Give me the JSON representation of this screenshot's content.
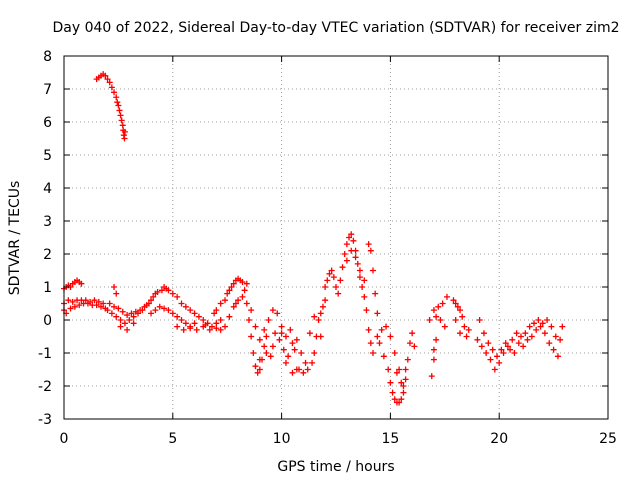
{
  "chart_data": {
    "type": "scatter",
    "title": "Day 040 of 2022, Sidereal Day-to-day VTEC variation (SDTVAR) for receiver zim2",
    "xlabel": "GPS time / hours",
    "ylabel": "SDTVAR / TECUs",
    "xlim": [
      0,
      25
    ],
    "ylim": [
      -3,
      8
    ],
    "xticks": [
      0,
      5,
      10,
      15,
      20,
      25
    ],
    "yticks": [
      -3,
      -2,
      -1,
      0,
      1,
      2,
      3,
      4,
      5,
      6,
      7,
      8
    ],
    "xtick_labels": [
      "0",
      "5",
      "10",
      "15",
      "20",
      "25"
    ],
    "ytick_labels": [
      "-3",
      "-2",
      "-1",
      "0",
      "1",
      "2",
      "3",
      "4",
      "5",
      "6",
      "7",
      "8"
    ],
    "grid": true,
    "marker": "+",
    "series": [
      {
        "name": "zim2",
        "color": "#ff0000",
        "points": [
          [
            0.0,
            0.3
          ],
          [
            0.0,
            0.95
          ],
          [
            0.1,
            1.0
          ],
          [
            0.2,
            1.05
          ],
          [
            0.3,
            1.0
          ],
          [
            0.4,
            1.1
          ],
          [
            0.5,
            1.15
          ],
          [
            0.6,
            1.2
          ],
          [
            0.7,
            1.15
          ],
          [
            0.8,
            1.1
          ],
          [
            0.0,
            0.5
          ],
          [
            0.2,
            0.6
          ],
          [
            0.4,
            0.55
          ],
          [
            0.6,
            0.6
          ],
          [
            0.8,
            0.6
          ],
          [
            1.0,
            0.6
          ],
          [
            1.2,
            0.55
          ],
          [
            1.4,
            0.6
          ],
          [
            1.6,
            0.55
          ],
          [
            1.8,
            0.5
          ],
          [
            0.1,
            0.2
          ],
          [
            0.3,
            0.35
          ],
          [
            0.5,
            0.4
          ],
          [
            0.7,
            0.45
          ],
          [
            0.9,
            0.5
          ],
          [
            1.1,
            0.5
          ],
          [
            1.3,
            0.45
          ],
          [
            1.5,
            0.45
          ],
          [
            1.7,
            0.4
          ],
          [
            1.9,
            0.35
          ],
          [
            2.0,
            0.3
          ],
          [
            2.2,
            0.2
          ],
          [
            2.4,
            0.1
          ],
          [
            2.6,
            0.0
          ],
          [
            2.8,
            -0.1
          ],
          [
            3.0,
            0.0
          ],
          [
            3.2,
            0.1
          ],
          [
            3.4,
            0.2
          ],
          [
            3.6,
            0.3
          ],
          [
            3.8,
            0.45
          ],
          [
            2.1,
            0.5
          ],
          [
            2.3,
            0.4
          ],
          [
            2.5,
            0.35
          ],
          [
            2.7,
            0.25
          ],
          [
            2.9,
            0.15
          ],
          [
            3.1,
            0.2
          ],
          [
            3.3,
            0.25
          ],
          [
            3.5,
            0.3
          ],
          [
            3.7,
            0.4
          ],
          [
            3.9,
            0.5
          ],
          [
            2.3,
            1.0
          ],
          [
            2.4,
            0.8
          ],
          [
            2.6,
            -0.2
          ],
          [
            2.9,
            -0.3
          ],
          [
            3.2,
            -0.1
          ],
          [
            4.0,
            0.6
          ],
          [
            4.1,
            0.7
          ],
          [
            4.2,
            0.8
          ],
          [
            4.3,
            0.85
          ],
          [
            4.5,
            0.9
          ],
          [
            4.6,
            1.0
          ],
          [
            4.7,
            0.95
          ],
          [
            4.8,
            0.9
          ],
          [
            5.0,
            0.8
          ],
          [
            5.2,
            0.7
          ],
          [
            4.0,
            0.2
          ],
          [
            4.2,
            0.3
          ],
          [
            4.4,
            0.4
          ],
          [
            4.6,
            0.35
          ],
          [
            4.8,
            0.3
          ],
          [
            5.0,
            0.2
          ],
          [
            5.2,
            0.1
          ],
          [
            5.4,
            0.0
          ],
          [
            5.6,
            -0.1
          ],
          [
            5.8,
            -0.2
          ],
          [
            5.4,
            0.5
          ],
          [
            5.6,
            0.4
          ],
          [
            5.8,
            0.3
          ],
          [
            6.0,
            0.2
          ],
          [
            6.2,
            0.1
          ],
          [
            6.4,
            0.0
          ],
          [
            6.6,
            -0.1
          ],
          [
            6.8,
            -0.2
          ],
          [
            7.0,
            -0.1
          ],
          [
            7.2,
            0.0
          ],
          [
            5.2,
            -0.2
          ],
          [
            5.5,
            -0.3
          ],
          [
            5.8,
            -0.25
          ],
          [
            6.1,
            -0.3
          ],
          [
            6.4,
            -0.2
          ],
          [
            6.7,
            -0.3
          ],
          [
            7.0,
            -0.25
          ],
          [
            6.0,
            -0.1
          ],
          [
            6.5,
            -0.15
          ],
          [
            6.9,
            0.2
          ],
          [
            7.0,
            0.3
          ],
          [
            7.2,
            0.5
          ],
          [
            7.4,
            0.6
          ],
          [
            7.5,
            0.8
          ],
          [
            7.6,
            0.9
          ],
          [
            7.7,
            1.0
          ],
          [
            7.8,
            1.1
          ],
          [
            7.9,
            1.2
          ],
          [
            8.0,
            1.25
          ],
          [
            8.1,
            1.2
          ],
          [
            7.2,
            -0.3
          ],
          [
            7.4,
            -0.2
          ],
          [
            7.6,
            0.1
          ],
          [
            7.8,
            0.4
          ],
          [
            8.0,
            0.6
          ],
          [
            8.2,
            0.7
          ],
          [
            8.3,
            0.9
          ],
          [
            8.4,
            1.1
          ],
          [
            8.2,
            1.15
          ],
          [
            7.9,
            0.5
          ],
          [
            8.4,
            0.5
          ],
          [
            8.5,
            0.0
          ],
          [
            8.6,
            -0.5
          ],
          [
            8.7,
            -1.0
          ],
          [
            8.8,
            -1.4
          ],
          [
            8.9,
            -1.6
          ],
          [
            9.0,
            -1.5
          ],
          [
            9.1,
            -1.2
          ],
          [
            9.2,
            -0.8
          ],
          [
            9.3,
            -0.5
          ],
          [
            8.6,
            0.3
          ],
          [
            8.8,
            -0.2
          ],
          [
            9.0,
            -0.6
          ],
          [
            9.2,
            -0.3
          ],
          [
            9.4,
            0.0
          ],
          [
            9.6,
            0.3
          ],
          [
            9.8,
            0.2
          ],
          [
            10.0,
            -0.2
          ],
          [
            10.2,
            -0.5
          ],
          [
            10.4,
            -0.3
          ],
          [
            9.0,
            -1.2
          ],
          [
            9.3,
            -1.0
          ],
          [
            9.6,
            -0.8
          ],
          [
            9.9,
            -0.6
          ],
          [
            10.1,
            -0.9
          ],
          [
            10.3,
            -1.1
          ],
          [
            10.5,
            -0.7
          ],
          [
            10.7,
            -0.6
          ],
          [
            10.9,
            -1.0
          ],
          [
            11.1,
            -1.3
          ],
          [
            10.8,
            -1.5
          ],
          [
            11.0,
            -1.6
          ],
          [
            11.2,
            -1.5
          ],
          [
            11.4,
            -1.3
          ],
          [
            11.5,
            -1.0
          ],
          [
            11.6,
            -0.5
          ],
          [
            11.7,
            0.0
          ],
          [
            11.8,
            0.2
          ],
          [
            11.9,
            0.4
          ],
          [
            12.0,
            0.6
          ],
          [
            10.5,
            -1.6
          ],
          [
            10.7,
            -1.5
          ],
          [
            11.3,
            -0.4
          ],
          [
            11.5,
            0.1
          ],
          [
            10.2,
            -1.3
          ],
          [
            10.6,
            -0.9
          ],
          [
            9.5,
            -1.1
          ],
          [
            9.7,
            -0.4
          ],
          [
            10.0,
            -0.4
          ],
          [
            11.8,
            -0.5
          ],
          [
            12.0,
            1.0
          ],
          [
            12.1,
            1.2
          ],
          [
            12.2,
            1.4
          ],
          [
            12.3,
            1.5
          ],
          [
            12.4,
            1.3
          ],
          [
            12.5,
            1.0
          ],
          [
            12.6,
            0.8
          ],
          [
            12.7,
            1.2
          ],
          [
            12.8,
            1.6
          ],
          [
            12.9,
            2.0
          ],
          [
            13.0,
            2.3
          ],
          [
            13.1,
            2.5
          ],
          [
            13.2,
            2.6
          ],
          [
            13.3,
            2.4
          ],
          [
            13.4,
            2.1
          ],
          [
            13.5,
            1.7
          ],
          [
            13.6,
            1.3
          ],
          [
            13.7,
            1.0
          ],
          [
            13.8,
            0.7
          ],
          [
            13.9,
            0.3
          ],
          [
            13.0,
            1.8
          ],
          [
            13.2,
            2.1
          ],
          [
            13.4,
            1.9
          ],
          [
            13.6,
            1.5
          ],
          [
            13.8,
            1.2
          ],
          [
            14.0,
            2.3
          ],
          [
            14.1,
            2.1
          ],
          [
            14.2,
            1.5
          ],
          [
            14.3,
            0.8
          ],
          [
            14.4,
            0.2
          ],
          [
            14.0,
            -0.3
          ],
          [
            14.1,
            -0.7
          ],
          [
            14.2,
            -1.0
          ],
          [
            14.4,
            -0.5
          ],
          [
            14.6,
            -0.3
          ],
          [
            14.8,
            -0.2
          ],
          [
            15.0,
            -0.5
          ],
          [
            15.2,
            -1.0
          ],
          [
            15.4,
            -1.5
          ],
          [
            15.6,
            -2.0
          ],
          [
            14.9,
            -1.5
          ],
          [
            15.0,
            -1.9
          ],
          [
            15.1,
            -2.2
          ],
          [
            15.2,
            -2.4
          ],
          [
            15.3,
            -2.5
          ],
          [
            15.4,
            -2.5
          ],
          [
            15.5,
            -2.4
          ],
          [
            15.6,
            -2.2
          ],
          [
            15.7,
            -1.8
          ],
          [
            15.8,
            -1.2
          ],
          [
            15.9,
            -0.7
          ],
          [
            16.0,
            -0.4
          ],
          [
            16.1,
            -0.8
          ],
          [
            15.7,
            -1.5
          ],
          [
            15.5,
            -1.9
          ],
          [
            15.3,
            -1.6
          ],
          [
            14.7,
            -1.1
          ],
          [
            14.5,
            -0.7
          ],
          [
            16.9,
            -1.7
          ],
          [
            17.0,
            -1.2
          ],
          [
            17.0,
            -0.9
          ],
          [
            17.1,
            -0.6
          ],
          [
            16.8,
            0.0
          ],
          [
            17.0,
            0.3
          ],
          [
            17.2,
            0.4
          ],
          [
            17.4,
            0.5
          ],
          [
            17.6,
            0.7
          ],
          [
            17.3,
            0.0
          ],
          [
            17.5,
            -0.2
          ],
          [
            17.1,
            0.1
          ],
          [
            17.9,
            0.6
          ],
          [
            18.0,
            0.5
          ],
          [
            18.1,
            0.4
          ],
          [
            18.2,
            0.3
          ],
          [
            18.3,
            0.1
          ],
          [
            18.4,
            -0.2
          ],
          [
            18.5,
            -0.5
          ],
          [
            18.6,
            -0.3
          ],
          [
            18.2,
            -0.4
          ],
          [
            18.0,
            0.0
          ],
          [
            19.0,
            -0.6
          ],
          [
            19.2,
            -0.8
          ],
          [
            19.4,
            -1.0
          ],
          [
            19.6,
            -1.2
          ],
          [
            19.8,
            -1.5
          ],
          [
            20.0,
            -1.3
          ],
          [
            20.2,
            -1.0
          ],
          [
            20.4,
            -0.8
          ],
          [
            20.6,
            -0.6
          ],
          [
            20.8,
            -0.4
          ],
          [
            19.1,
            0.0
          ],
          [
            19.3,
            -0.4
          ],
          [
            19.5,
            -0.7
          ],
          [
            19.7,
            -0.9
          ],
          [
            19.9,
            -1.1
          ],
          [
            20.1,
            -0.9
          ],
          [
            20.3,
            -0.7
          ],
          [
            20.5,
            -0.9
          ],
          [
            20.7,
            -1.0
          ],
          [
            20.9,
            -0.7
          ],
          [
            21.0,
            -0.5
          ],
          [
            21.2,
            -0.4
          ],
          [
            21.4,
            -0.2
          ],
          [
            21.6,
            -0.1
          ],
          [
            21.8,
            0.0
          ],
          [
            22.0,
            -0.1
          ],
          [
            22.2,
            0.0
          ],
          [
            22.4,
            -0.2
          ],
          [
            22.6,
            -0.5
          ],
          [
            22.8,
            -0.6
          ],
          [
            21.1,
            -0.8
          ],
          [
            21.3,
            -0.6
          ],
          [
            21.5,
            -0.5
          ],
          [
            21.7,
            -0.3
          ],
          [
            21.9,
            -0.2
          ],
          [
            22.1,
            -0.4
          ],
          [
            22.3,
            -0.7
          ],
          [
            22.5,
            -0.9
          ],
          [
            22.7,
            -1.1
          ],
          [
            22.9,
            -0.2
          ],
          [
            1.5,
            7.3
          ],
          [
            1.6,
            7.35
          ],
          [
            1.7,
            7.4
          ],
          [
            1.8,
            7.45
          ],
          [
            1.9,
            7.4
          ],
          [
            2.0,
            7.3
          ],
          [
            2.1,
            7.2
          ],
          [
            2.2,
            7.05
          ],
          [
            2.3,
            6.9
          ],
          [
            2.4,
            6.75
          ],
          [
            2.45,
            6.6
          ],
          [
            2.5,
            6.5
          ],
          [
            2.55,
            6.35
          ],
          [
            2.6,
            6.2
          ],
          [
            2.65,
            6.05
          ],
          [
            2.7,
            5.9
          ],
          [
            2.72,
            5.75
          ],
          [
            2.75,
            5.6
          ],
          [
            2.78,
            5.5
          ],
          [
            2.8,
            5.7
          ]
        ]
      }
    ]
  }
}
